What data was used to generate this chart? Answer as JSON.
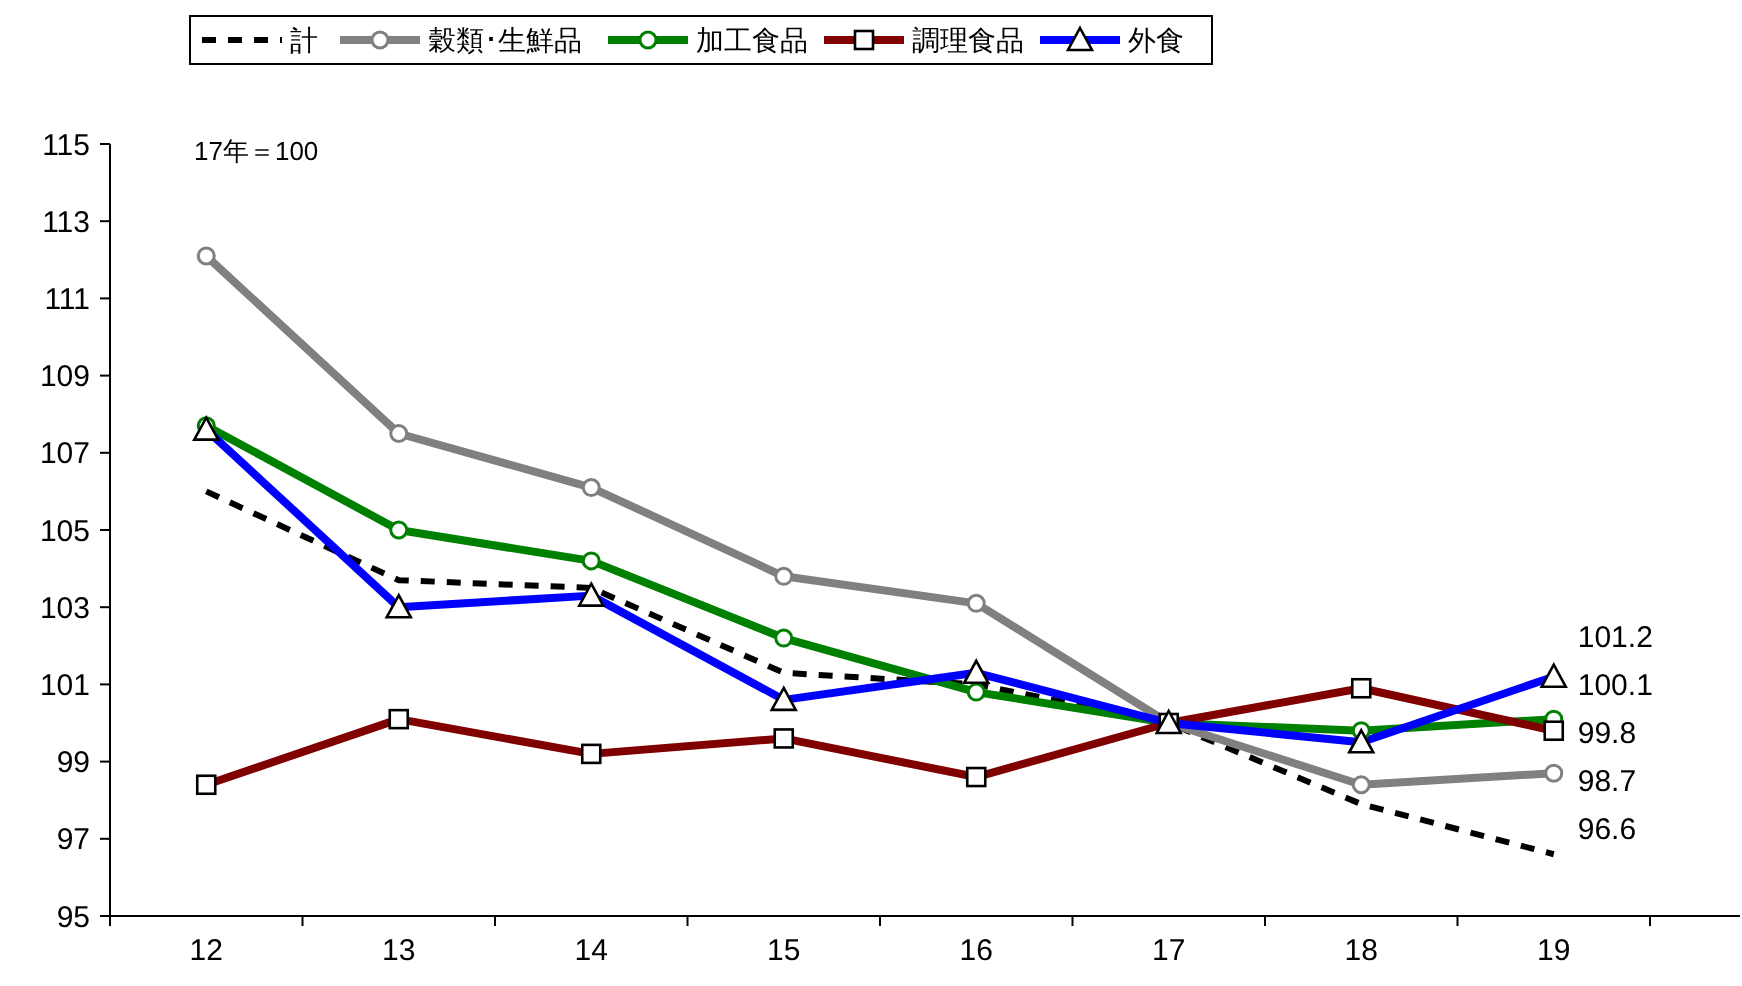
{
  "chart_data": {
    "type": "line",
    "annotations": [
      "17年＝100"
    ],
    "categories": [
      "12",
      "13",
      "14",
      "15",
      "16",
      "17",
      "18",
      "19"
    ],
    "ylim": [
      95,
      115
    ],
    "yticks": [
      95,
      97,
      99,
      101,
      103,
      105,
      107,
      109,
      111,
      113,
      115
    ],
    "grid": false,
    "legend": "top",
    "series": [
      {
        "name": "計",
        "color": "#000000",
        "line_style": "dashed",
        "marker": "none",
        "values": [
          106.0,
          103.7,
          103.5,
          101.3,
          101.0,
          100,
          97.9,
          96.6
        ],
        "value_labels": [
          null,
          null,
          null,
          null,
          null,
          null,
          null,
          "96.6"
        ]
      },
      {
        "name": "穀類･生鮮品",
        "color": "#808080",
        "line_style": "solid",
        "marker": "circle",
        "values": [
          112.1,
          107.5,
          106.1,
          103.8,
          103.1,
          100,
          98.4,
          98.7
        ],
        "value_labels": [
          null,
          null,
          null,
          null,
          null,
          null,
          null,
          "98.7"
        ]
      },
      {
        "name": "加工食品",
        "color": "#008000",
        "line_style": "solid",
        "marker": "circle",
        "values": [
          107.7,
          105.0,
          104.2,
          102.2,
          100.8,
          100,
          99.8,
          100.1
        ],
        "value_labels": [
          null,
          null,
          null,
          null,
          null,
          null,
          null,
          "100.1"
        ]
      },
      {
        "name": "調理食品",
        "color": "#800000",
        "line_style": "solid",
        "marker": "square",
        "values": [
          98.4,
          100.1,
          99.2,
          99.6,
          98.6,
          100,
          100.9,
          99.8
        ],
        "value_labels": [
          null,
          null,
          null,
          null,
          null,
          null,
          null,
          "99.8"
        ]
      },
      {
        "name": "外食",
        "color": "#0000ff",
        "line_style": "solid",
        "marker": "triangle",
        "values": [
          107.6,
          103.0,
          103.3,
          100.6,
          101.3,
          100,
          99.5,
          101.2
        ],
        "value_labels": [
          null,
          null,
          null,
          null,
          null,
          null,
          null,
          "101.2"
        ]
      }
    ]
  }
}
